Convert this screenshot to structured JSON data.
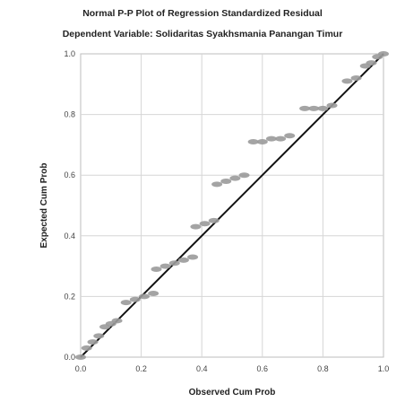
{
  "chart_data": {
    "type": "scatter",
    "title": "Normal P-P Plot of Regression Standardized Residual",
    "subtitle": "Dependent Variable: Solidaritas Syakhsmania Panangan Timur",
    "xlabel": "Observed Cum Prob",
    "ylabel": "Expected Cum Prob",
    "xlim": [
      0,
      1
    ],
    "ylim": [
      0,
      1
    ],
    "xticks": [
      "0.0",
      "0.2",
      "0.4",
      "0.6",
      "0.8",
      "1.0"
    ],
    "yticks": [
      "0.0",
      "0.2",
      "0.4",
      "0.6",
      "0.8",
      "1.0"
    ],
    "grid": true,
    "reference_line": [
      [
        0,
        0
      ],
      [
        1,
        1
      ]
    ],
    "colors": {
      "points": "#9a9a9a",
      "line": "#111111",
      "grid": "#d6d6d6"
    },
    "series": [
      {
        "points": [
          [
            0.0,
            0.0
          ],
          [
            0.02,
            0.03
          ],
          [
            0.04,
            0.05
          ],
          [
            0.06,
            0.07
          ],
          [
            0.08,
            0.1
          ],
          [
            0.1,
            0.11
          ],
          [
            0.12,
            0.12
          ],
          [
            0.15,
            0.18
          ],
          [
            0.18,
            0.19
          ],
          [
            0.21,
            0.2
          ],
          [
            0.24,
            0.21
          ],
          [
            0.25,
            0.29
          ],
          [
            0.28,
            0.3
          ],
          [
            0.31,
            0.31
          ],
          [
            0.34,
            0.32
          ],
          [
            0.37,
            0.33
          ],
          [
            0.38,
            0.43
          ],
          [
            0.41,
            0.44
          ],
          [
            0.44,
            0.45
          ],
          [
            0.45,
            0.57
          ],
          [
            0.48,
            0.58
          ],
          [
            0.51,
            0.59
          ],
          [
            0.54,
            0.6
          ],
          [
            0.57,
            0.71
          ],
          [
            0.6,
            0.71
          ],
          [
            0.63,
            0.72
          ],
          [
            0.66,
            0.72
          ],
          [
            0.69,
            0.73
          ],
          [
            0.74,
            0.82
          ],
          [
            0.77,
            0.82
          ],
          [
            0.8,
            0.82
          ],
          [
            0.83,
            0.83
          ],
          [
            0.88,
            0.91
          ],
          [
            0.91,
            0.92
          ],
          [
            0.94,
            0.96
          ],
          [
            0.96,
            0.97
          ],
          [
            0.98,
            0.99
          ],
          [
            1.0,
            1.0
          ]
        ]
      }
    ]
  }
}
